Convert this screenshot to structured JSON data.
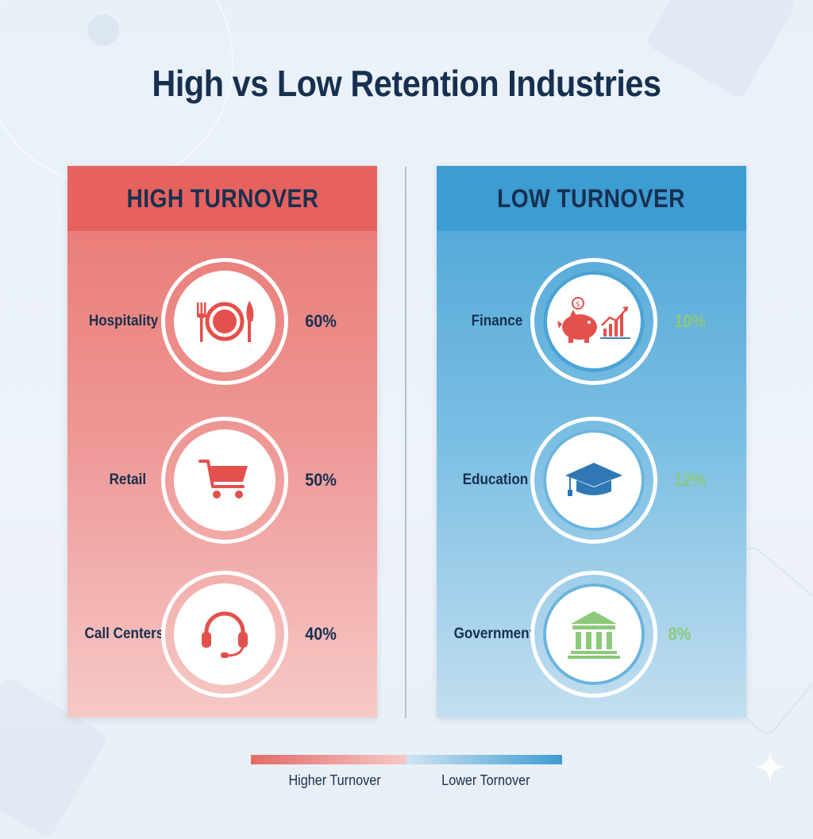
{
  "title": "High vs Low Retention Industries",
  "colors": {
    "high_accent": "#e6625f",
    "low_accent": "#3d9cd2",
    "title_text": "#17304f",
    "low_percent": "#8cc97a"
  },
  "high": {
    "heading": "HIGH TURNOVER",
    "items": [
      {
        "label": "Hospitality",
        "value": "60%",
        "icon": "plate-cutlery-icon"
      },
      {
        "label": "Retail",
        "value": "50%",
        "icon": "shopping-cart-icon"
      },
      {
        "label": "Call Centers",
        "value": "40%",
        "icon": "headset-icon"
      }
    ]
  },
  "low": {
    "heading": "LOW TURNOVER",
    "items": [
      {
        "label": "Finance",
        "value": "10%",
        "icon": "piggy-bank-chart-icon"
      },
      {
        "label": "Education",
        "value": "12%",
        "icon": "graduation-cap-icon"
      },
      {
        "label": "Government",
        "value": "8%",
        "icon": "government-building-icon"
      }
    ]
  },
  "legend": {
    "left": "Higher Turnover",
    "right": "Lower Tornover"
  }
}
